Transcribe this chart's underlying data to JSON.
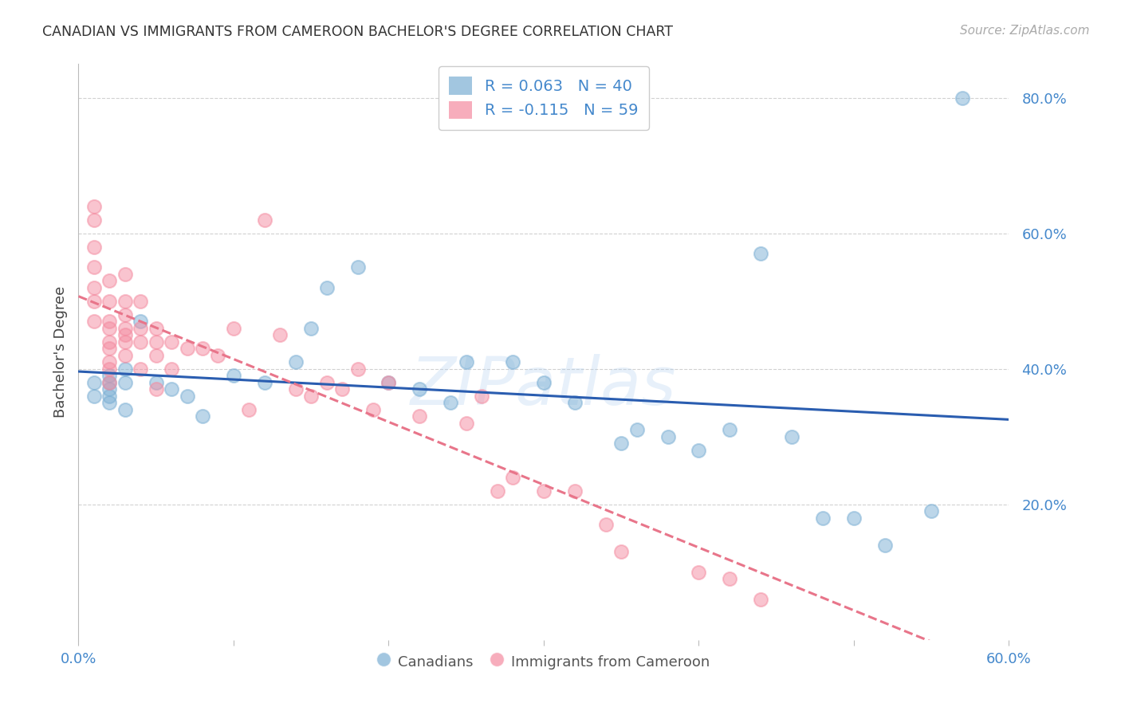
{
  "title": "CANADIAN VS IMMIGRANTS FROM CAMEROON BACHELOR'S DEGREE CORRELATION CHART",
  "source": "Source: ZipAtlas.com",
  "ylabel": "Bachelor's Degree",
  "xlabel_canadians": "Canadians",
  "xlabel_immigrants": "Immigrants from Cameroon",
  "x_min": 0.0,
  "x_max": 0.6,
  "y_min": 0.0,
  "y_max": 0.85,
  "canadian_color": "#7BAFD4",
  "immigrant_color": "#F48BA0",
  "trend_canadian_color": "#2A5DB0",
  "trend_immigrant_color": "#E8758A",
  "r_canadian": 0.063,
  "n_canadian": 40,
  "r_immigrant": -0.115,
  "n_immigrant": 59,
  "canadians_x": [
    0.01,
    0.01,
    0.02,
    0.02,
    0.02,
    0.02,
    0.02,
    0.03,
    0.03,
    0.03,
    0.04,
    0.05,
    0.06,
    0.07,
    0.08,
    0.1,
    0.12,
    0.14,
    0.15,
    0.16,
    0.18,
    0.2,
    0.22,
    0.24,
    0.25,
    0.28,
    0.3,
    0.32,
    0.35,
    0.36,
    0.38,
    0.4,
    0.42,
    0.44,
    0.46,
    0.48,
    0.5,
    0.52,
    0.55,
    0.57
  ],
  "canadians_y": [
    0.38,
    0.36,
    0.37,
    0.39,
    0.35,
    0.38,
    0.36,
    0.4,
    0.38,
    0.34,
    0.47,
    0.38,
    0.37,
    0.36,
    0.33,
    0.39,
    0.38,
    0.41,
    0.46,
    0.52,
    0.55,
    0.38,
    0.37,
    0.35,
    0.41,
    0.41,
    0.38,
    0.35,
    0.29,
    0.31,
    0.3,
    0.28,
    0.31,
    0.57,
    0.3,
    0.18,
    0.18,
    0.14,
    0.19,
    0.8
  ],
  "immigrants_x": [
    0.01,
    0.01,
    0.01,
    0.01,
    0.01,
    0.01,
    0.01,
    0.02,
    0.02,
    0.02,
    0.02,
    0.02,
    0.02,
    0.02,
    0.02,
    0.02,
    0.03,
    0.03,
    0.03,
    0.03,
    0.03,
    0.03,
    0.03,
    0.04,
    0.04,
    0.04,
    0.04,
    0.05,
    0.05,
    0.05,
    0.05,
    0.06,
    0.06,
    0.07,
    0.08,
    0.09,
    0.1,
    0.11,
    0.12,
    0.13,
    0.14,
    0.15,
    0.16,
    0.17,
    0.18,
    0.19,
    0.2,
    0.22,
    0.25,
    0.26,
    0.27,
    0.28,
    0.3,
    0.32,
    0.34,
    0.35,
    0.4,
    0.42,
    0.44
  ],
  "immigrants_y": [
    0.64,
    0.62,
    0.58,
    0.55,
    0.52,
    0.5,
    0.47,
    0.53,
    0.5,
    0.47,
    0.46,
    0.44,
    0.43,
    0.41,
    0.4,
    0.38,
    0.54,
    0.5,
    0.48,
    0.46,
    0.45,
    0.44,
    0.42,
    0.5,
    0.46,
    0.44,
    0.4,
    0.46,
    0.44,
    0.42,
    0.37,
    0.44,
    0.4,
    0.43,
    0.43,
    0.42,
    0.46,
    0.34,
    0.62,
    0.45,
    0.37,
    0.36,
    0.38,
    0.37,
    0.4,
    0.34,
    0.38,
    0.33,
    0.32,
    0.36,
    0.22,
    0.24,
    0.22,
    0.22,
    0.17,
    0.13,
    0.1,
    0.09,
    0.06
  ],
  "watermark": "ZIPatlas",
  "background_color": "#FFFFFF",
  "grid_color": "#CCCCCC",
  "tick_color": "#4488CC",
  "legend_text_color": "#4488CC"
}
